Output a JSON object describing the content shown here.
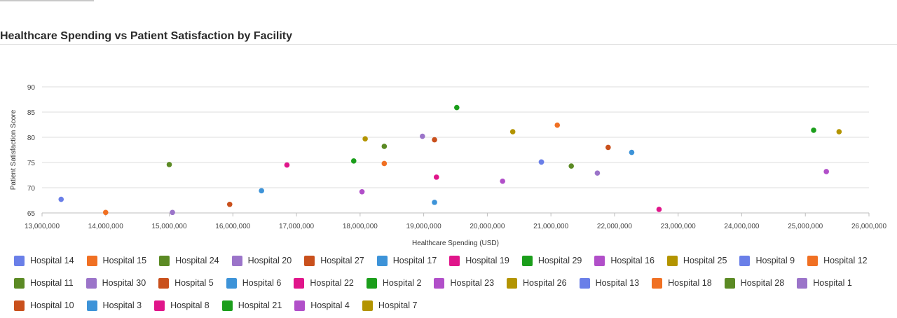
{
  "chart_data": {
    "type": "scatter",
    "title": "Healthcare Spending vs Patient Satisfaction by Facility",
    "xlabel": "Healthcare Spending (USD)",
    "ylabel": "Patient Satisfaction Score",
    "xlim": [
      13000000,
      26000000
    ],
    "ylim": [
      65,
      90
    ],
    "xticks": [
      "13,000,000",
      "14,000,000",
      "15,000,000",
      "16,000,000",
      "17,000,000",
      "18,000,000",
      "19,000,000",
      "20,000,000",
      "21,000,000",
      "22,000,000",
      "23,000,000",
      "24,000,000",
      "25,000,000",
      "26,000,000"
    ],
    "yticks": [
      "65",
      "70",
      "75",
      "80",
      "85",
      "90"
    ],
    "grid": true,
    "legend_position": "bottom",
    "series": [
      {
        "name": "Hospital 14",
        "color": "#6a7fe8",
        "x": 13300000,
        "y": 67.7
      },
      {
        "name": "Hospital 15",
        "color": "#f07023",
        "x": 14000000,
        "y": 65.1
      },
      {
        "name": "Hospital 24",
        "color": "#5b8a24",
        "x": 15000000,
        "y": 74.6
      },
      {
        "name": "Hospital 20",
        "color": "#9b74c9",
        "x": 15050000,
        "y": 65.1
      },
      {
        "name": "Hospital 27",
        "color": "#c9501c",
        "x": 15950000,
        "y": 66.7
      },
      {
        "name": "Hospital 17",
        "color": "#3d93d8",
        "x": 16450000,
        "y": 69.4
      },
      {
        "name": "Hospital 19",
        "color": "#e0158a",
        "x": 16850000,
        "y": 74.5
      },
      {
        "name": "Hospital 29",
        "color": "#1b9e1b",
        "x": 17900000,
        "y": 75.3
      },
      {
        "name": "Hospital 16",
        "color": "#b14fc9",
        "x": 18030000,
        "y": 69.2
      },
      {
        "name": "Hospital 25",
        "color": "#b39400",
        "x": 18080000,
        "y": 79.7
      },
      {
        "name": "Hospital 9",
        "color": "#6a7fe8",
        "x": 20850000,
        "y": 75.1
      },
      {
        "name": "Hospital 12",
        "color": "#f07023",
        "x": 18380000,
        "y": 74.8
      },
      {
        "name": "Hospital 11",
        "color": "#5b8a24",
        "x": 18380000,
        "y": 78.2
      },
      {
        "name": "Hospital 30",
        "color": "#9b74c9",
        "x": 18980000,
        "y": 80.2
      },
      {
        "name": "Hospital 5",
        "color": "#c9501c",
        "x": 19170000,
        "y": 79.5
      },
      {
        "name": "Hospital 6",
        "color": "#3d93d8",
        "x": 19170000,
        "y": 67.1
      },
      {
        "name": "Hospital 22",
        "color": "#e0158a",
        "x": 19200000,
        "y": 72.1
      },
      {
        "name": "Hospital 2",
        "color": "#1b9e1b",
        "x": 19520000,
        "y": 85.9
      },
      {
        "name": "Hospital 23",
        "color": "#b14fc9",
        "x": 20240000,
        "y": 71.3
      },
      {
        "name": "Hospital 26",
        "color": "#b39400",
        "x": 20400000,
        "y": 81.1
      },
      {
        "name": "Hospital 13",
        "color": "#6a7fe8",
        "x": 20850000,
        "y": 75.1
      },
      {
        "name": "Hospital 18",
        "color": "#f07023",
        "x": 21100000,
        "y": 82.4
      },
      {
        "name": "Hospital 28",
        "color": "#5b8a24",
        "x": 21320000,
        "y": 74.3
      },
      {
        "name": "Hospital 1",
        "color": "#9b74c9",
        "x": 21730000,
        "y": 72.9
      },
      {
        "name": "Hospital 10",
        "color": "#c9501c",
        "x": 21900000,
        "y": 78.0
      },
      {
        "name": "Hospital 3",
        "color": "#3d93d8",
        "x": 22270000,
        "y": 77.0
      },
      {
        "name": "Hospital 8",
        "color": "#e0158a",
        "x": 22700000,
        "y": 65.7
      },
      {
        "name": "Hospital 21",
        "color": "#1b9e1b",
        "x": 25130000,
        "y": 81.4
      },
      {
        "name": "Hospital 4",
        "color": "#b14fc9",
        "x": 25330000,
        "y": 73.2
      },
      {
        "name": "Hospital 7",
        "color": "#b39400",
        "x": 25530000,
        "y": 81.1
      }
    ]
  },
  "legend": [
    {
      "label": "Hospital 14",
      "color": "#6a7fe8"
    },
    {
      "label": "Hospital 15",
      "color": "#f07023"
    },
    {
      "label": "Hospital 24",
      "color": "#5b8a24"
    },
    {
      "label": "Hospital 20",
      "color": "#9b74c9"
    },
    {
      "label": "Hospital 27",
      "color": "#c9501c"
    },
    {
      "label": "Hospital 17",
      "color": "#3d93d8"
    },
    {
      "label": "Hospital 19",
      "color": "#e0158a"
    },
    {
      "label": "Hospital 29",
      "color": "#1b9e1b"
    },
    {
      "label": "Hospital 16",
      "color": "#b14fc9"
    },
    {
      "label": "Hospital 25",
      "color": "#b39400"
    },
    {
      "label": "Hospital 9",
      "color": "#6a7fe8"
    },
    {
      "label": "Hospital 12",
      "color": "#f07023"
    },
    {
      "label": "Hospital 11",
      "color": "#5b8a24"
    },
    {
      "label": "Hospital 30",
      "color": "#9b74c9"
    },
    {
      "label": "Hospital 5",
      "color": "#c9501c"
    },
    {
      "label": "Hospital 6",
      "color": "#3d93d8"
    },
    {
      "label": "Hospital 22",
      "color": "#e0158a"
    },
    {
      "label": "Hospital 2",
      "color": "#1b9e1b"
    },
    {
      "label": "Hospital 23",
      "color": "#b14fc9"
    },
    {
      "label": "Hospital 26",
      "color": "#b39400"
    },
    {
      "label": "Hospital 13",
      "color": "#6a7fe8"
    },
    {
      "label": "Hospital 18",
      "color": "#f07023"
    },
    {
      "label": "Hospital 28",
      "color": "#5b8a24"
    },
    {
      "label": "Hospital 1",
      "color": "#9b74c9"
    },
    {
      "label": "Hospital 10",
      "color": "#c9501c"
    },
    {
      "label": "Hospital 3",
      "color": "#3d93d8"
    },
    {
      "label": "Hospital 8",
      "color": "#e0158a"
    },
    {
      "label": "Hospital 21",
      "color": "#1b9e1b"
    },
    {
      "label": "Hospital 4",
      "color": "#b14fc9"
    },
    {
      "label": "Hospital 7",
      "color": "#b39400"
    }
  ]
}
